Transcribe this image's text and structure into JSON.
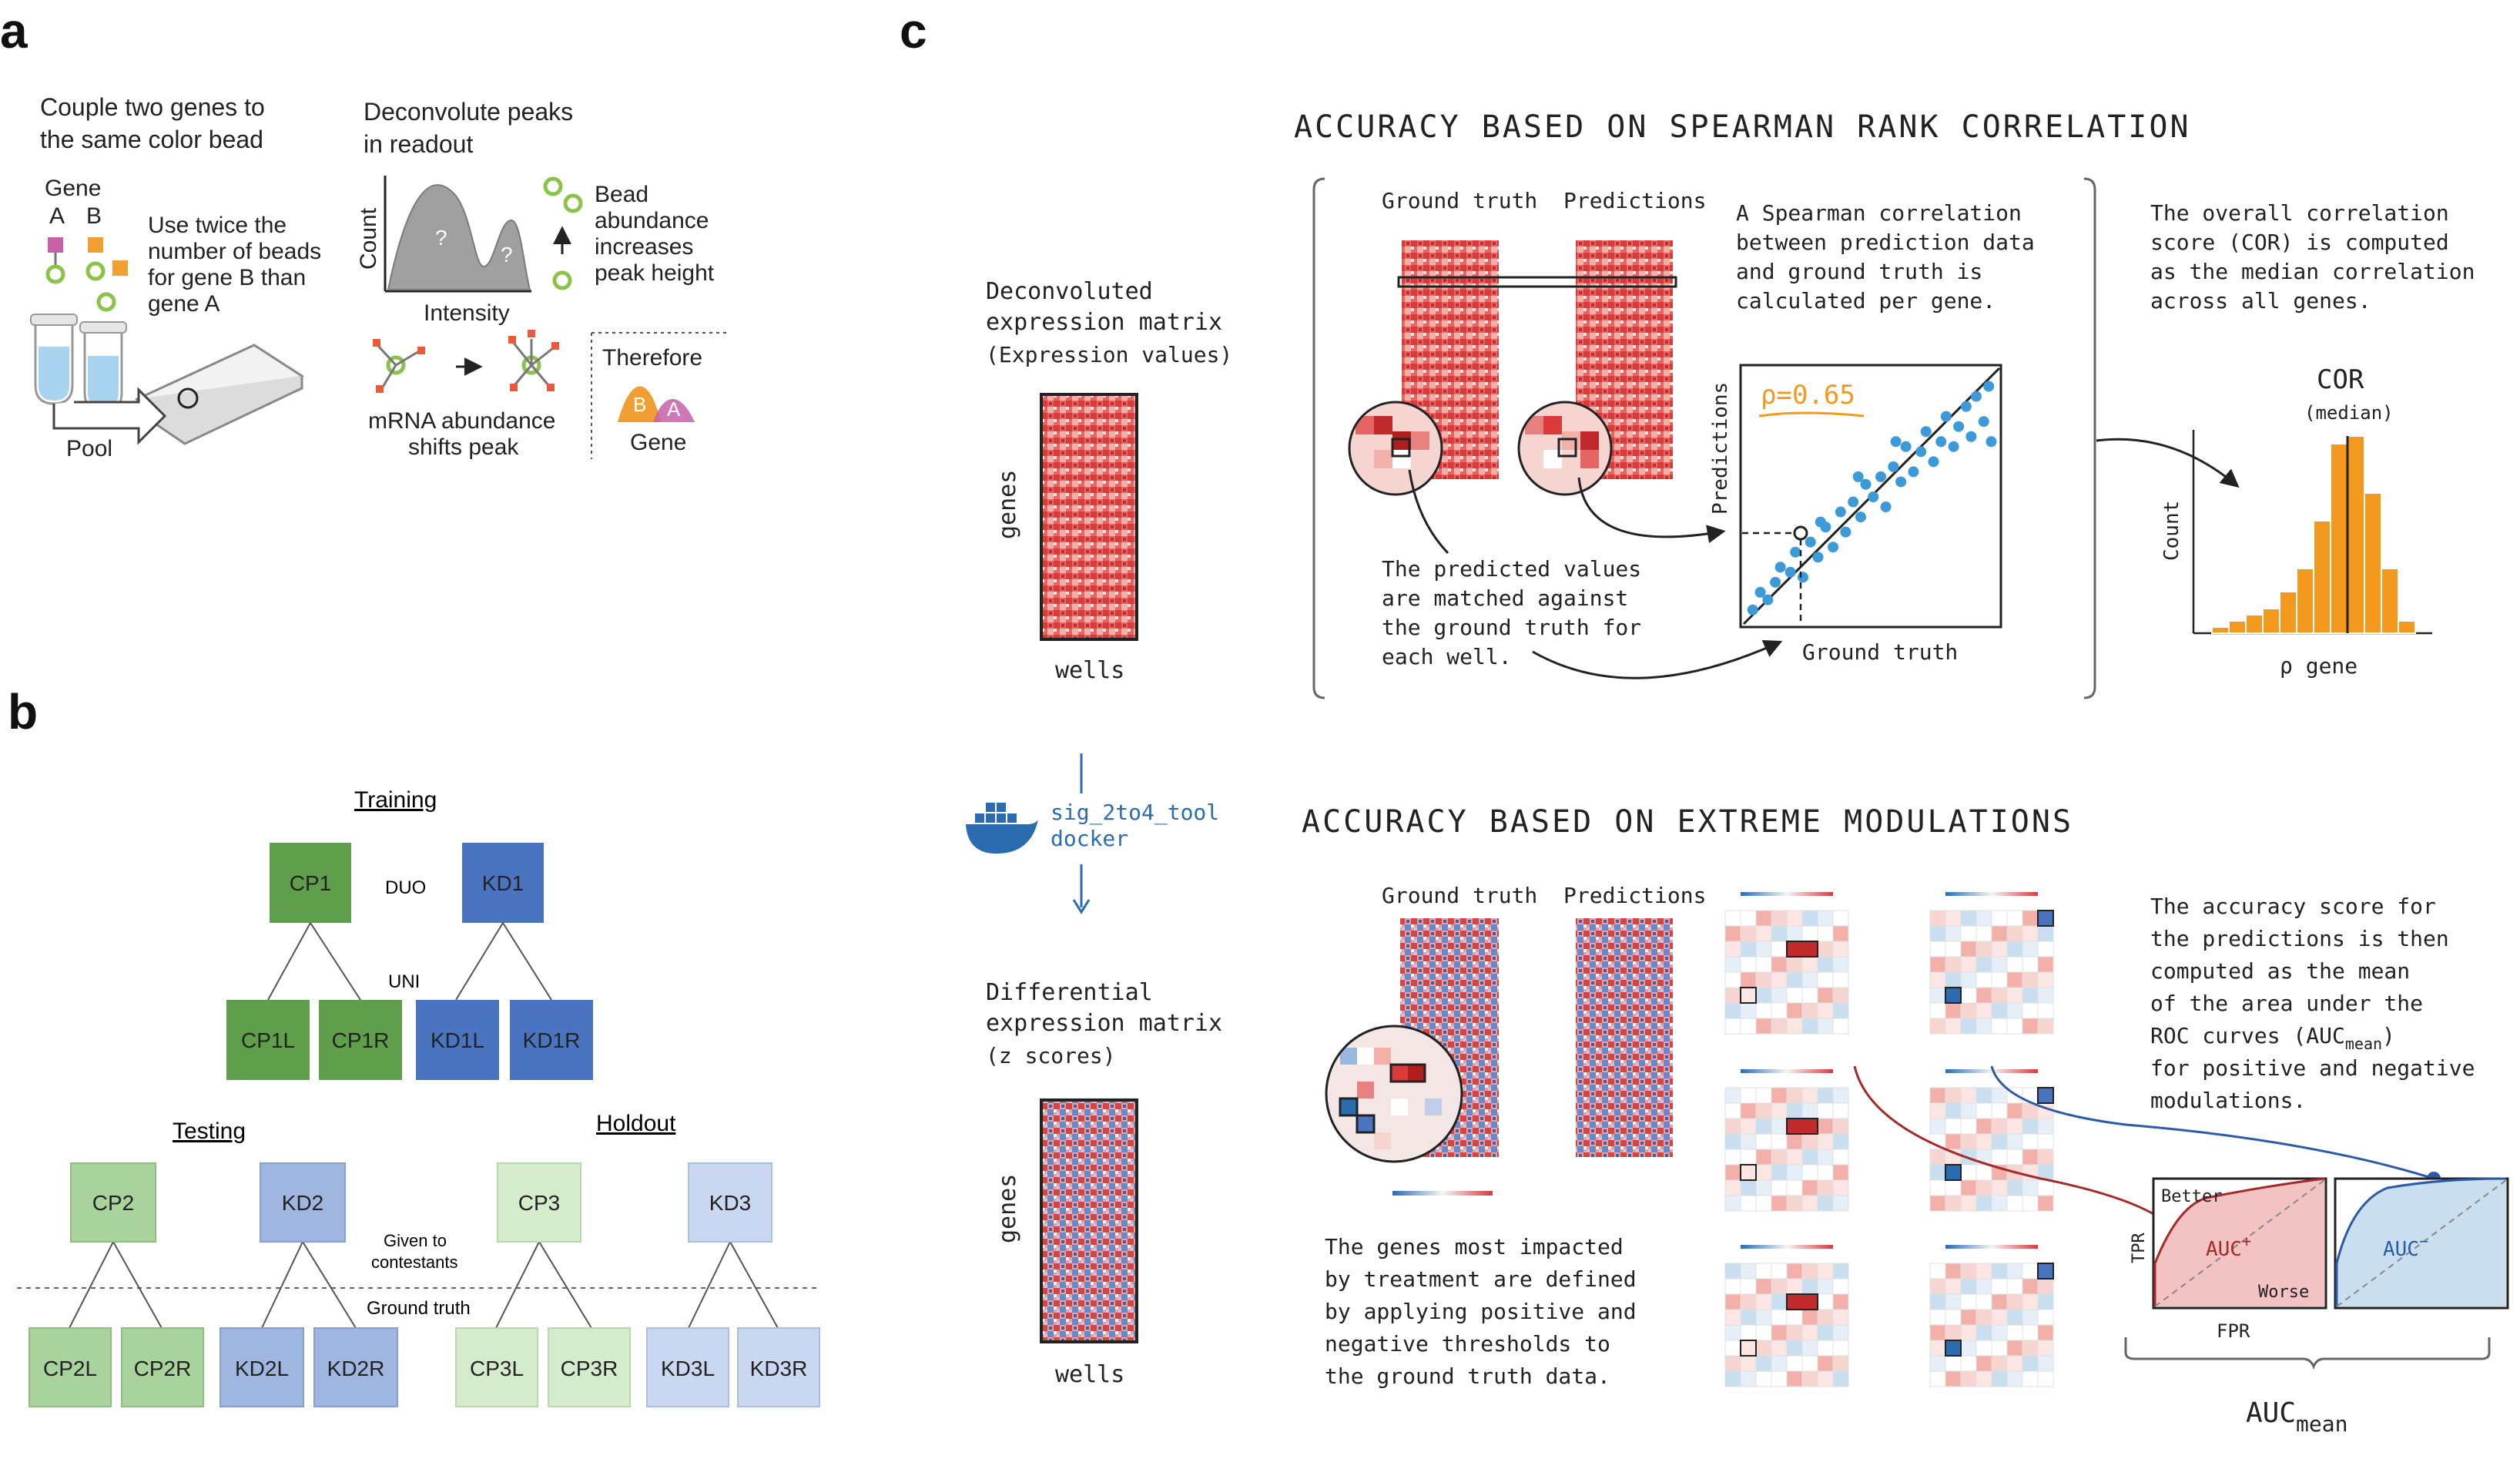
{
  "panels": {
    "a": "a",
    "b": "b",
    "c": "c"
  },
  "panel_a": {
    "couple_line1": "Couple two genes to",
    "couple_line2": "the same color bead",
    "deconv_line1": "Deconvolute peaks",
    "deconv_line2": "in readout",
    "gene_label": "Gene",
    "gene_a": "A",
    "gene_b": "B",
    "use_twice": [
      "Use twice the",
      "number of beads",
      "for gene B than",
      "gene A"
    ],
    "pool": "Pool",
    "count": "Count",
    "intensity": "Intensity",
    "q1": "?",
    "q2": "?",
    "bead_text": [
      "Bead",
      "abundance",
      "increases",
      "peak height"
    ],
    "mrna_line1": "mRNA abundance",
    "mrna_line2": "shifts peak",
    "therefore": "Therefore",
    "peak_b": "B",
    "peak_a": "A",
    "gene_bottom": "Gene",
    "colors": {
      "gene_a": "#c85fa8",
      "gene_b": "#f0a030",
      "bead": "#8bc34a",
      "tube": "#a8d4f0"
    }
  },
  "panel_b": {
    "training": "Training",
    "testing": "Testing",
    "holdout": "Holdout",
    "duo": "DUO",
    "uni": "UNI",
    "given_line1": "Given to",
    "given_line2": "contestants",
    "ground_truth": "Ground truth",
    "boxes": {
      "cp1": "CP1",
      "kd1": "KD1",
      "cp1l": "CP1L",
      "cp1r": "CP1R",
      "kd1l": "KD1L",
      "kd1r": "KD1R",
      "cp2": "CP2",
      "kd2": "KD2",
      "cp3": "CP3",
      "kd3": "KD3",
      "cp2l": "CP2L",
      "cp2r": "CP2R",
      "kd2l": "KD2L",
      "kd2r": "KD2R",
      "cp3l": "CP3L",
      "cp3r": "CP3R",
      "kd3l": "KD3L",
      "kd3r": "KD3R"
    },
    "colors": {
      "train_green": "#5f9e4a",
      "train_blue": "#4a74c0",
      "test_green": "#a9d39c",
      "test_blue": "#9fb6e0",
      "hold_green": "#d4ebcc",
      "hold_blue": "#c9d8f0"
    }
  },
  "panel_c": {
    "top_title": "ACCURACY BASED ON SPEARMAN RANK CORRELATION",
    "bottom_title": "ACCURACY BASED ON EXTREME MODULATIONS",
    "deconv_matrix": [
      "Deconvoluted",
      "expression matrix",
      "(Expression values)"
    ],
    "diff_matrix": [
      "Differential",
      "expression matrix",
      "(z scores)"
    ],
    "genes": "genes",
    "wells": "wells",
    "docker_tool": "sig_2to4_tool",
    "docker": "docker",
    "ground_truth": "Ground truth",
    "predictions": "Predictions",
    "spearman_text": [
      "A Spearman correlation",
      "between prediction data",
      "and ground truth is",
      "calculated per gene."
    ],
    "matched_text": [
      "The predicted values",
      "are matched against",
      "the ground truth for",
      "each well."
    ],
    "rho": "ρ=0.65",
    "scatter_x": "Ground truth",
    "scatter_y": "Predictions",
    "overall_text": [
      "The overall correlation",
      "score (COR) is computed",
      "as the median correlation",
      "across all genes."
    ],
    "cor": "COR",
    "median": "(median)",
    "count": "Count",
    "rho_gene": "ρ gene",
    "genes_impacted": [
      "The genes most impacted",
      "by treatment are defined",
      "by applying positive and",
      "negative thresholds to",
      "the ground truth data."
    ],
    "accuracy_text": [
      "The accuracy score for",
      "the predictions is then",
      "computed as the mean",
      "of the area under the",
      "ROC curves (AUC",
      ")",
      "for positive and negative",
      "modulations."
    ],
    "mean_sub": "mean",
    "better": "Better",
    "worse": "Worse",
    "auc_plus": "AUC",
    "auc_minus": "AUC",
    "plus": "+",
    "minus": "−",
    "tpr": "TPR",
    "fpr": "FPR",
    "auc_mean": "AUC",
    "colors": {
      "red": "#d73b3b",
      "blue": "#2b6cb0",
      "orange": "#f39a1e",
      "scatter": "#3d9ad8"
    }
  }
}
